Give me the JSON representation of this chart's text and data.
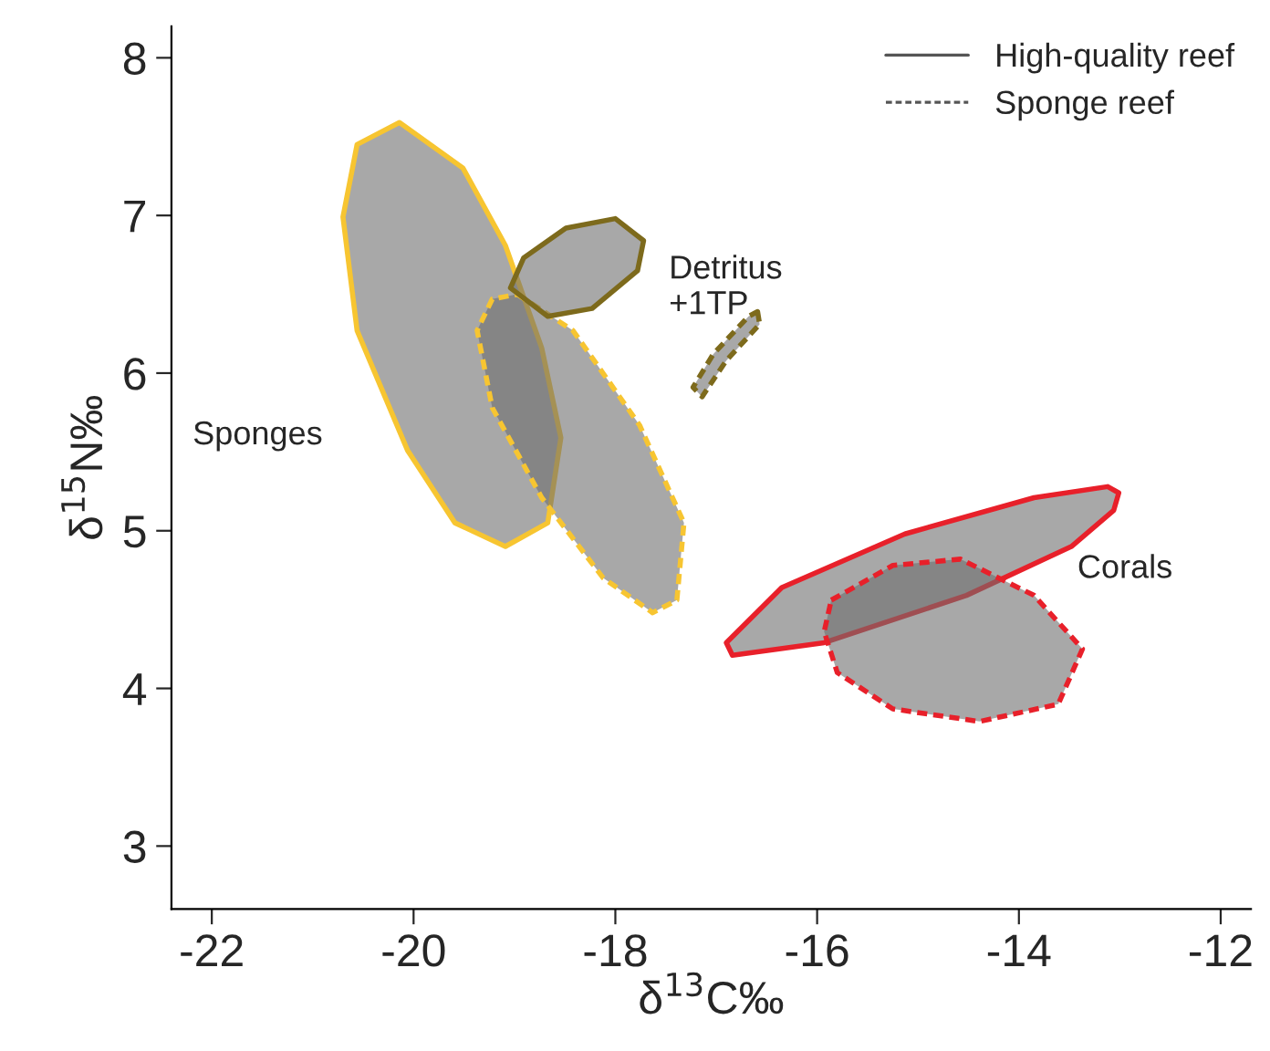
{
  "chart_data": {
    "type": "area",
    "xlabel": "δ$^{13}$C‰",
    "ylabel": "δ$^{15}$N‰",
    "xlim": [
      -22.4,
      -11.7
    ],
    "ylim": [
      2.6,
      8.2
    ],
    "xticks": [
      -22,
      -20,
      -18,
      -16,
      -14,
      -12
    ],
    "yticks": [
      3,
      4,
      5,
      6,
      7,
      8
    ],
    "grid": false,
    "legend": "top right",
    "marker": "none",
    "annotations": [
      "Sponges",
      "Detritus\n+1TP",
      "Corals"
    ],
    "series": [
      {
        "name": "High-quality reef",
        "color": "#f7c531",
        "line_style": "solid",
        "x": [
          -20.14,
          -19.51,
          -19.09,
          -18.73,
          -18.54,
          -18.67,
          -19.09,
          -19.59,
          -20.06,
          -20.56,
          -20.7,
          -20.56
        ],
        "values": [
          7.59,
          7.3,
          6.81,
          6.16,
          5.59,
          5.05,
          4.9,
          5.05,
          5.51,
          6.27,
          6.99,
          7.45
        ]
      },
      {
        "name": "Sponge reef",
        "color": "#f7c531",
        "line_style": "dotted",
        "x": [
          -18.97,
          -18.42,
          -17.76,
          -17.32,
          -17.39,
          -17.63,
          -18.12,
          -18.73,
          -19.22,
          -19.37,
          -19.22
        ],
        "values": [
          6.5,
          6.27,
          5.67,
          5.05,
          4.56,
          4.48,
          4.7,
          5.21,
          5.78,
          6.27,
          6.47
        ]
      },
      {
        "color": "#7d6a1c",
        "line_style": "solid",
        "x": [
          -18.91,
          -18.49,
          -18.0,
          -17.72,
          -17.78,
          -18.23,
          -18.67,
          -19.04
        ],
        "values": [
          6.73,
          6.92,
          6.98,
          6.84,
          6.65,
          6.41,
          6.36,
          6.54
        ]
      },
      {
        "color": "#7d6a1c",
        "line_style": "dotted",
        "x": [
          -16.59,
          -16.57,
          -16.9,
          -17.14,
          -17.23,
          -17.03,
          -16.68
        ],
        "values": [
          6.39,
          6.31,
          6.08,
          5.85,
          5.91,
          6.12,
          6.36
        ]
      },
      {
        "color": "#e8202a",
        "line_style": "solid",
        "x": [
          -13.01,
          -13.12,
          -13.85,
          -15.13,
          -16.35,
          -16.9,
          -16.84,
          -15.93,
          -14.52,
          -13.48,
          -13.06
        ],
        "values": [
          5.24,
          5.28,
          5.21,
          4.98,
          4.64,
          4.29,
          4.21,
          4.29,
          4.59,
          4.9,
          5.13
        ]
      },
      {
        "color": "#e8202a",
        "line_style": "dotted",
        "x": [
          -15.86,
          -15.25,
          -14.58,
          -13.85,
          -13.37,
          -13.61,
          -14.39,
          -15.25,
          -15.8,
          -15.93
        ],
        "values": [
          4.56,
          4.78,
          4.82,
          4.59,
          4.25,
          3.9,
          3.79,
          3.87,
          4.1,
          4.36
        ]
      }
    ]
  }
}
